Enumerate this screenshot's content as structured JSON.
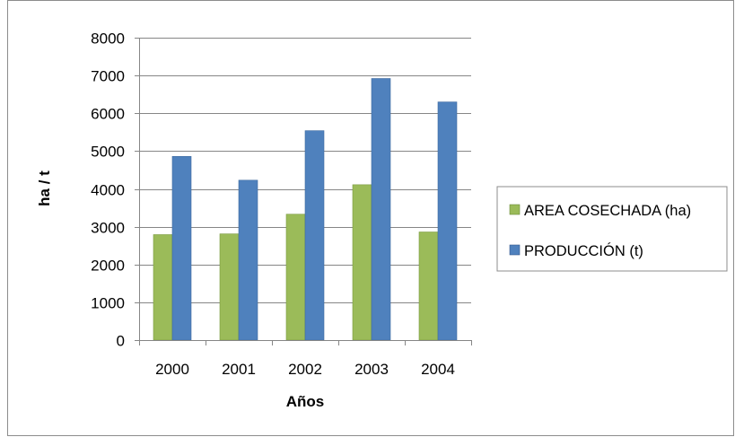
{
  "chart_data": {
    "type": "bar",
    "title": "",
    "xlabel": "Años",
    "ylabel": "ha / t",
    "categories": [
      "2000",
      "2001",
      "2002",
      "2003",
      "2004"
    ],
    "series": [
      {
        "name": "AREA COSECHADA (ha)",
        "color": "#9bbb59",
        "values": [
          2790,
          2810,
          3330,
          4110,
          2860
        ]
      },
      {
        "name": "PRODUCCIÓN (t)",
        "color": "#4f81bd",
        "values": [
          4860,
          4230,
          5540,
          6920,
          6300
        ]
      }
    ],
    "ylim": [
      0,
      8000
    ],
    "yticks": [
      "0",
      "1000",
      "2000",
      "3000",
      "4000",
      "5000",
      "6000",
      "7000",
      "8000"
    ],
    "grid": true,
    "legend_position": "right"
  }
}
